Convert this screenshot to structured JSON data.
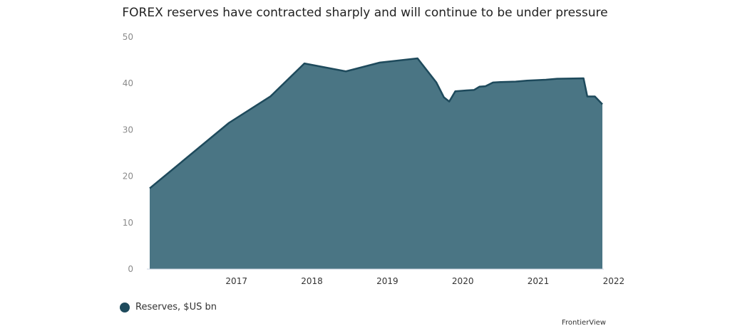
{
  "chart_data": {
    "type": "area",
    "title": "FOREX reserves have contracted sharply and will continue to be under pressure",
    "xlabel": "",
    "ylabel": "",
    "xlim": [
      2016.35,
      2022.35
    ],
    "ylim": [
      0,
      50
    ],
    "y_ticks": [
      "0",
      "10",
      "20",
      "30",
      "40",
      "50"
    ],
    "x_ticks": [
      "2017",
      "2018",
      "2019",
      "2020",
      "2021",
      "2022"
    ],
    "grid": false,
    "legend_position": "bottom-left",
    "series": [
      {
        "name": "Reserves, $US bn",
        "color": "#4a7584",
        "line_color": "#1e4a5c",
        "x": [
          2016.35,
          2017.4,
          2017.95,
          2018.4,
          2018.95,
          2019.4,
          2019.9,
          2020.15,
          2020.25,
          2020.32,
          2020.4,
          2020.55,
          2020.65,
          2020.72,
          2020.8,
          2020.9,
          2021.0,
          2021.2,
          2021.35,
          2021.6,
          2021.75,
          2022.1,
          2022.15,
          2022.25,
          2022.35
        ],
        "values": [
          17.4,
          31.5,
          37.2,
          44.3,
          42.6,
          44.5,
          45.4,
          40.2,
          37.0,
          36.1,
          38.3,
          38.5,
          38.6,
          39.3,
          39.4,
          40.2,
          40.3,
          40.4,
          40.6,
          40.8,
          41.0,
          41.1,
          37.2,
          37.2,
          35.5
        ]
      }
    ]
  },
  "source": "FrontierView"
}
